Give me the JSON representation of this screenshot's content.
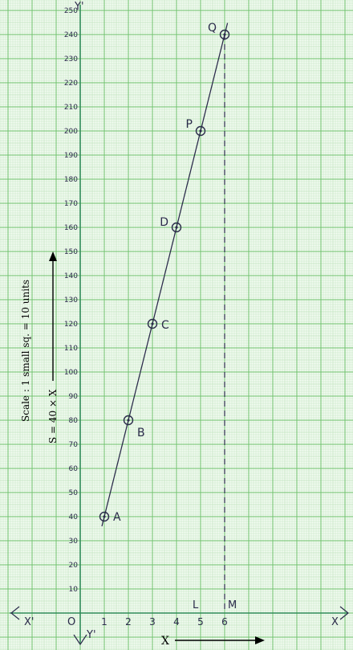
{
  "chart_data": {
    "type": "line",
    "x": [
      1,
      2,
      3,
      4,
      5,
      6
    ],
    "series": [
      {
        "values": [
          40,
          80,
          120,
          160,
          200,
          240
        ],
        "point_labels": [
          "A",
          "B",
          "C",
          "D",
          "P",
          "Q"
        ]
      }
    ],
    "x_ticks": [
      "1",
      "2",
      "3",
      "4",
      "5",
      "6"
    ],
    "y_ticks": [
      "10",
      "20",
      "30",
      "40",
      "50",
      "60",
      "70",
      "80",
      "90",
      "100",
      "110",
      "120",
      "130",
      "140",
      "150",
      "160",
      "170",
      "180",
      "190",
      "200",
      "210",
      "220",
      "230",
      "240",
      "250"
    ],
    "xlim": [
      -3,
      11
    ],
    "ylim": [
      -20,
      252
    ],
    "origin_label": "O",
    "x_axis_label": "X",
    "y_axis_label": "S = 40 × X",
    "scale_note": "Scale : 1 small sq. = 10 units",
    "axis_ends": {
      "x_pos": "X",
      "x_neg": "X'",
      "y_pos": "Y'",
      "y_neg": "Y'"
    },
    "foot_labels": [
      "L",
      "M"
    ],
    "vertical_guide_x": 6,
    "grid": true,
    "colors": {
      "paper": "#f3fbf2",
      "grid_minor": "#bfe3bd",
      "grid_major": "#6cc06a",
      "axis": "#2e8b57",
      "ink": "#2a2a4a"
    }
  }
}
